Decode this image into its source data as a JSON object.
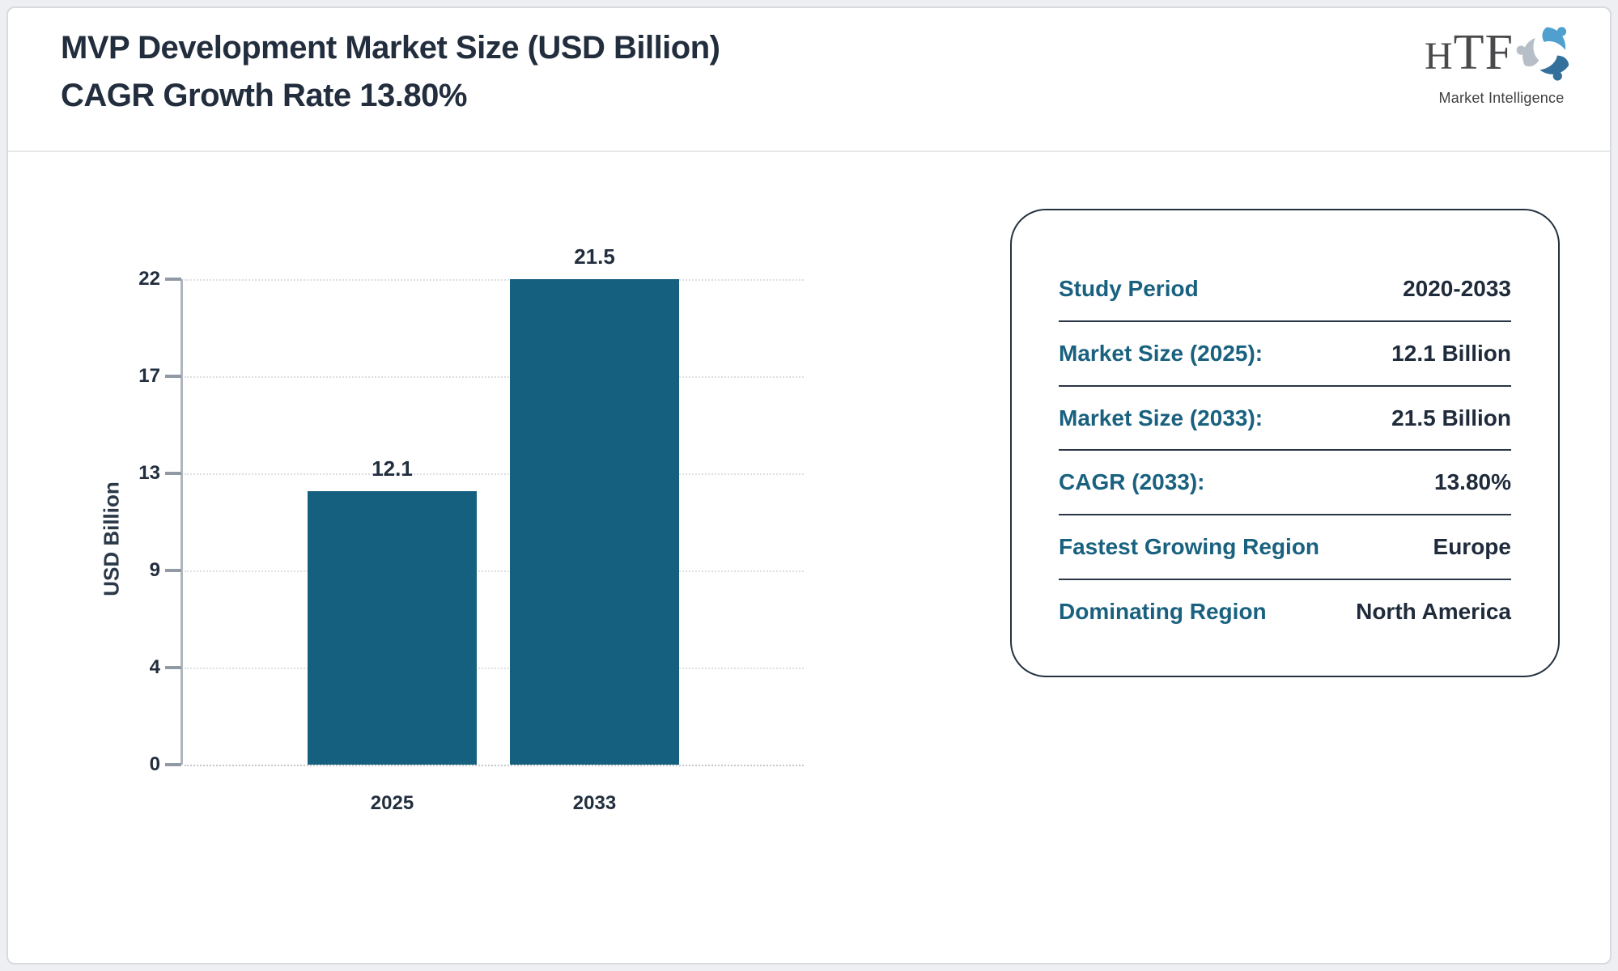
{
  "header": {
    "title_line1": "MVP Development Market Size (USD Billion)",
    "title_line2": "CAGR Growth Rate 13.80%"
  },
  "logo": {
    "text": "HTF",
    "subtext": "Market Intelligence",
    "swirl_colors": [
      "#4fa0cf",
      "#b6bfc7",
      "#33719c"
    ]
  },
  "chart_data": {
    "type": "bar",
    "title": "MVP Development Market Size (USD Billion) CAGR Growth Rate 13.80%",
    "categories": [
      "2025",
      "2033"
    ],
    "values": [
      12.1,
      21.5
    ],
    "value_labels": [
      "12.1",
      "21.5"
    ],
    "xlabel": "",
    "ylabel": "USD Billion",
    "ylim": [
      0,
      21.5
    ],
    "ytick_labels": [
      "0",
      "4",
      "9",
      "13",
      "17",
      "22"
    ],
    "grid": "horizontal-dotted",
    "legend": "none",
    "bar_color": "#15607f"
  },
  "info_card": {
    "rows": [
      {
        "label": "Study Period",
        "value": "2020-2033"
      },
      {
        "label": "Market Size (2025):",
        "value": "12.1 Billion"
      },
      {
        "label": "Market Size (2033):",
        "value": "21.5 Billion"
      },
      {
        "label": "CAGR (2033):",
        "value": "13.80%"
      },
      {
        "label": "Fastest Growing Region",
        "value": "Europe"
      },
      {
        "label": "Dominating Region",
        "value": "North America"
      }
    ],
    "label_color": "#19617f",
    "value_color": "#1f2b3a",
    "border_color": "#24313f"
  }
}
